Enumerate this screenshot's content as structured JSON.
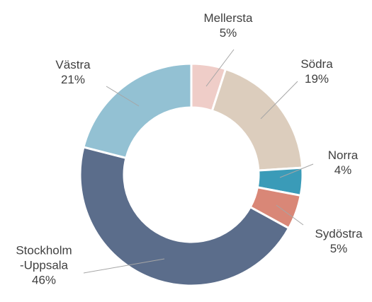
{
  "chart_data": {
    "type": "donut",
    "categories": [
      "Mellersta",
      "Södra",
      "Norra",
      "Sydöstra",
      "Stockholm\n-Uppsala",
      "Västra"
    ],
    "values": [
      5,
      19,
      4,
      5,
      46,
      21
    ],
    "value_labels": [
      "5%",
      "19%",
      "4%",
      "5%",
      "46%",
      "21%"
    ],
    "colors": [
      "#efcdc8",
      "#dccdbd",
      "#3a9bb8",
      "#d98777",
      "#5b6d8b",
      "#93c1d3"
    ]
  }
}
